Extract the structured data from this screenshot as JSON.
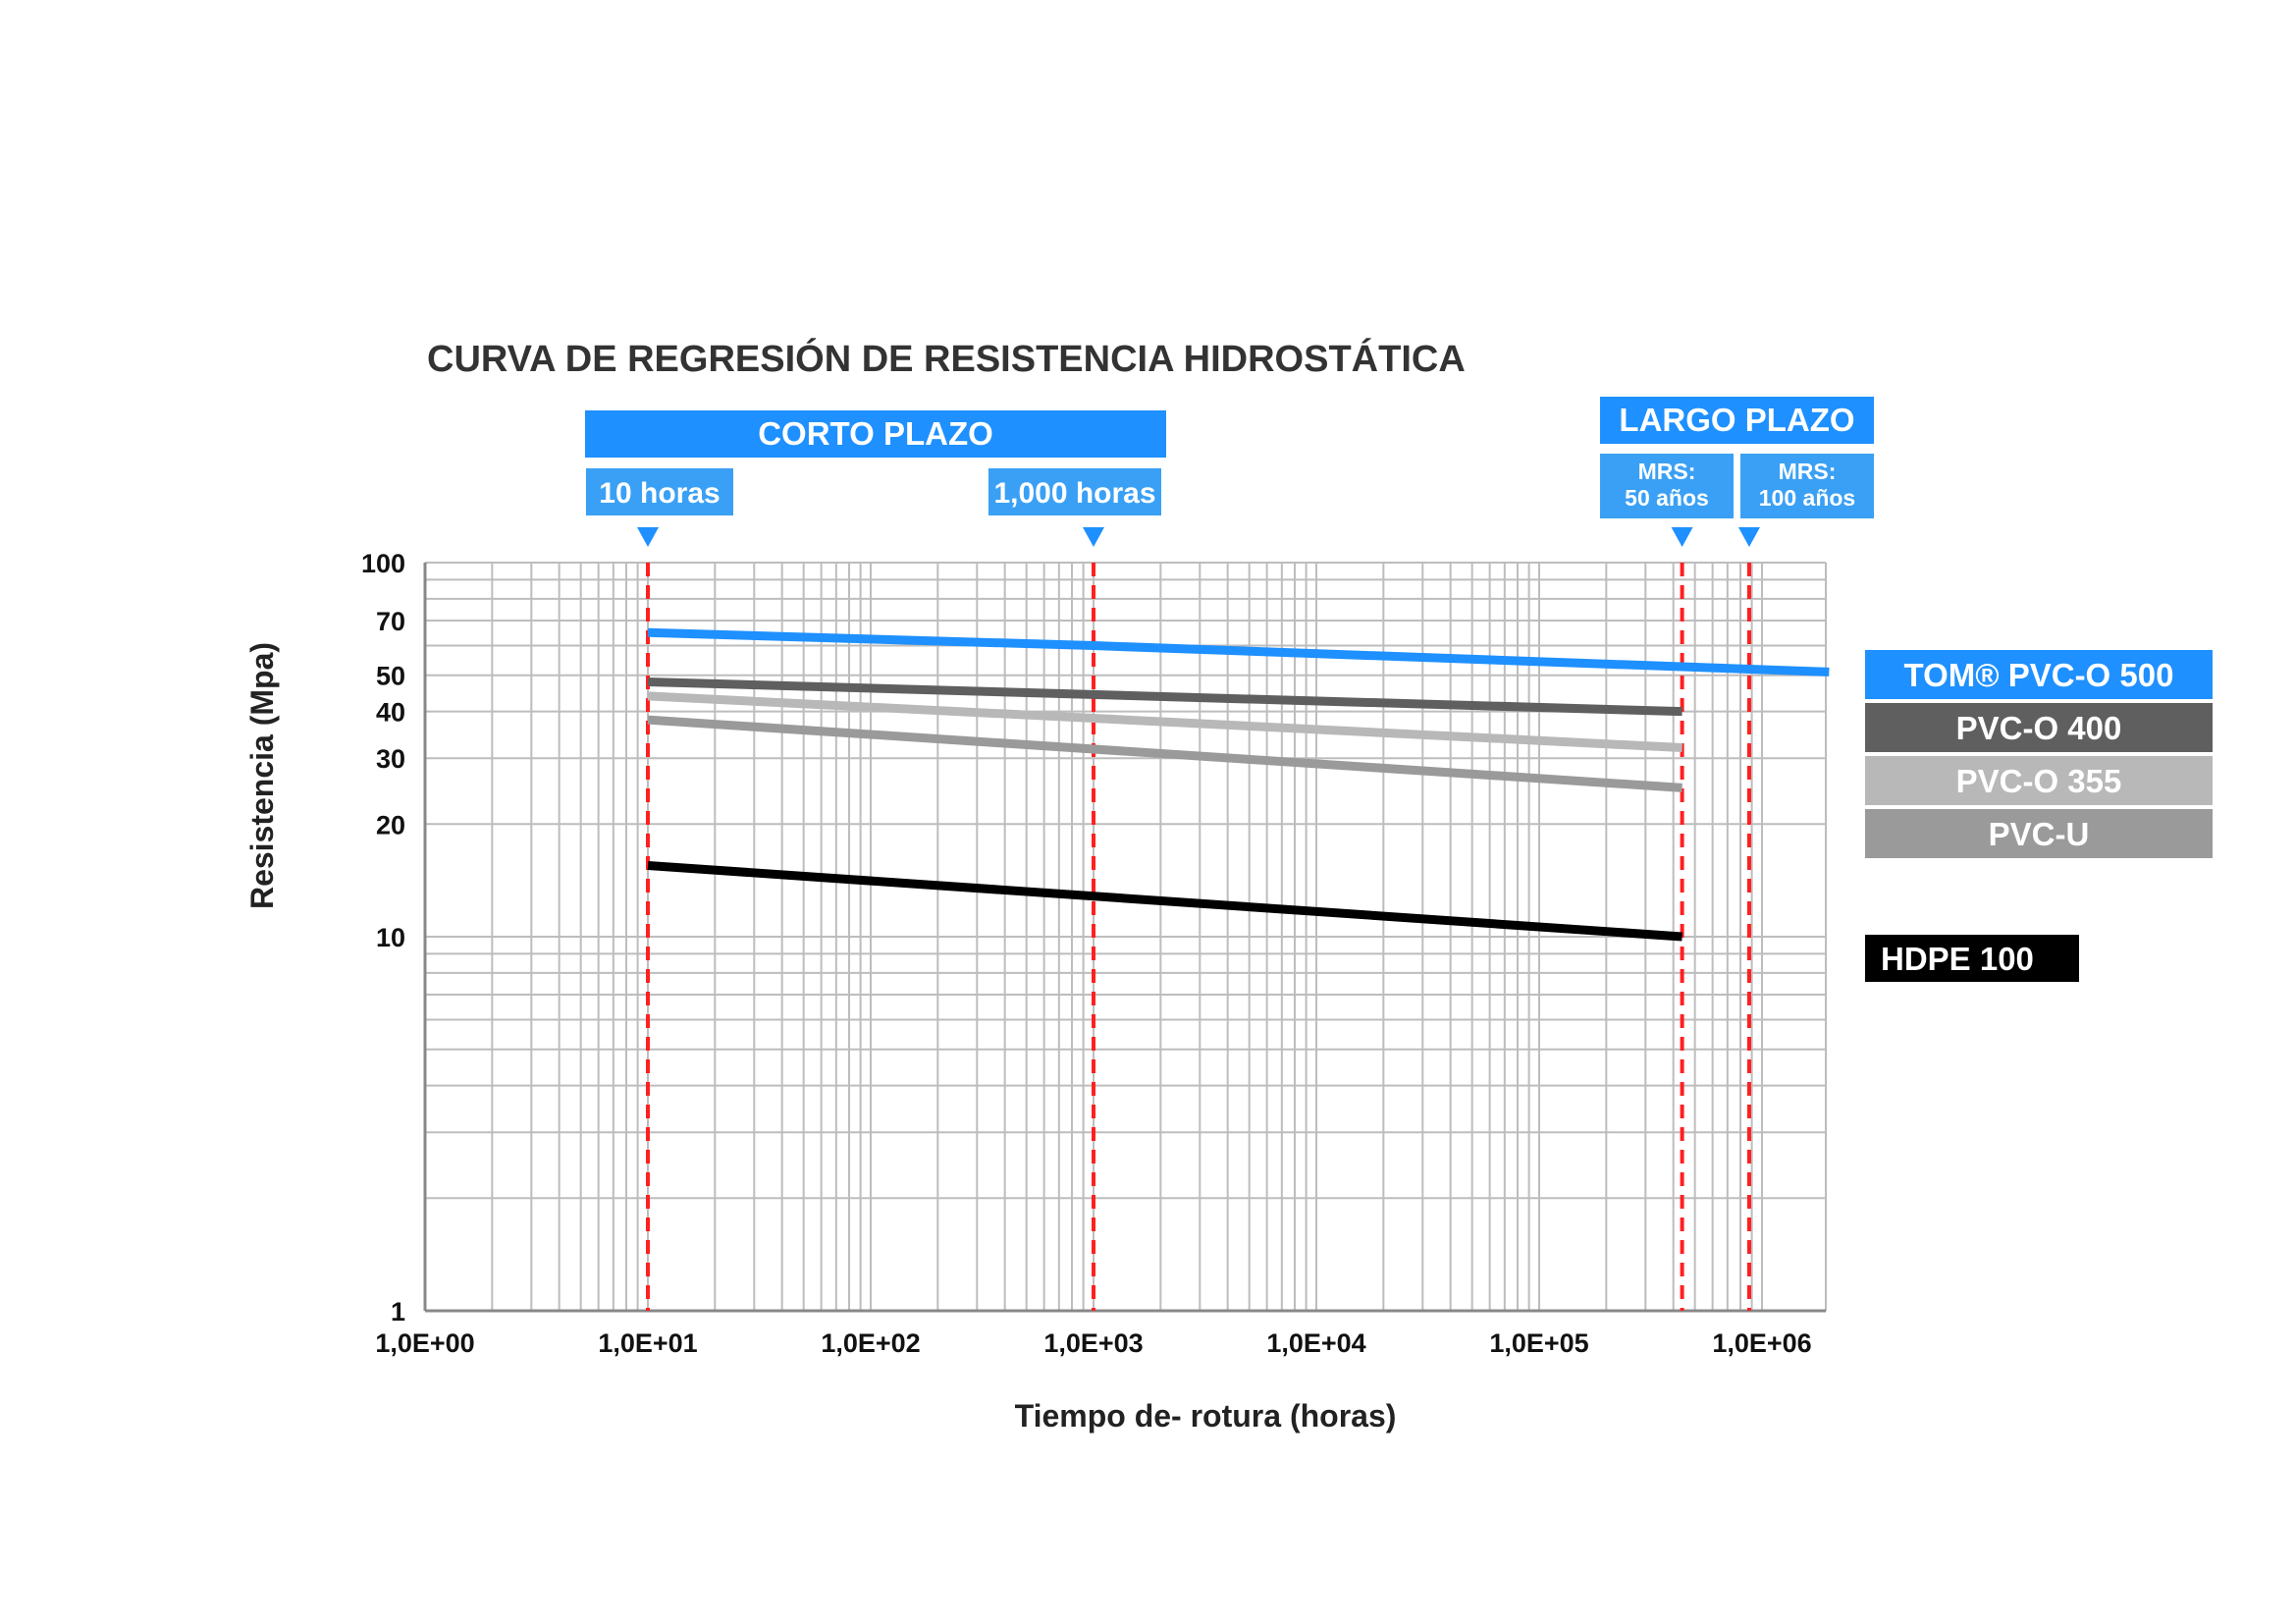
{
  "colors": {
    "blue": "#1e90ff",
    "blue_light": "#3aa0f5",
    "marker_red": "#ff2020",
    "grid": "#bdbdbd",
    "axis": "#888888"
  },
  "chart_data": {
    "type": "line",
    "title": "CURVA DE REGRESIÓN DE RESISTENCIA HIDROSTÁTICA",
    "xlabel": "Tiempo de- rotura (horas)",
    "ylabel": "Resistencia (Mpa)",
    "x_scale": "log",
    "y_scale": "log",
    "xlim": [
      1,
      2000000
    ],
    "ylim": [
      1,
      100
    ],
    "grid": true,
    "x_ticks": [
      {
        "value": 1,
        "label": "1,0E+00"
      },
      {
        "value": 10,
        "label": "1,0E+01"
      },
      {
        "value": 100,
        "label": "1,0E+02"
      },
      {
        "value": 1000,
        "label": "1,0E+03"
      },
      {
        "value": 10000,
        "label": "1,0E+04"
      },
      {
        "value": 100000,
        "label": "1,0E+05"
      },
      {
        "value": 1000000,
        "label": "1,0E+06"
      }
    ],
    "y_ticks": [
      {
        "value": 1,
        "label": "1"
      },
      {
        "value": 10,
        "label": "10"
      },
      {
        "value": 20,
        "label": "20"
      },
      {
        "value": 30,
        "label": "30"
      },
      {
        "value": 40,
        "label": "40"
      },
      {
        "value": 50,
        "label": "50"
      },
      {
        "value": 70,
        "label": "70"
      },
      {
        "value": 100,
        "label": "100"
      }
    ],
    "series": [
      {
        "name": "TOM® PVC-O 500",
        "color": "#1e90ff",
        "label_text": "#ffffff",
        "x": [
          10,
          1000,
          2000000
        ],
        "y": [
          65,
          60,
          51
        ]
      },
      {
        "name": "PVC-O 400",
        "color": "#5f5f5f",
        "label_text": "#ffffff",
        "x": [
          10,
          438000
        ],
        "y": [
          48,
          40
        ]
      },
      {
        "name": "PVC-O 355",
        "color": "#b8b8b8",
        "label_text": "#ffffff",
        "x": [
          10,
          438000
        ],
        "y": [
          44,
          32
        ]
      },
      {
        "name": "PVC-U",
        "color": "#9a9a9a",
        "label_text": "#ffffff",
        "x": [
          10,
          438000
        ],
        "y": [
          38,
          25
        ]
      },
      {
        "name": "HDPE 100",
        "color": "#000000",
        "label_text": "#ffffff",
        "x": [
          10,
          438000
        ],
        "y": [
          15.5,
          10
        ]
      }
    ],
    "markers": [
      {
        "x": 10,
        "label": "10 horas",
        "group": "CORTO PLAZO"
      },
      {
        "x": 1000,
        "label": "1,000 horas",
        "group": "CORTO PLAZO"
      },
      {
        "x": 438000,
        "label": [
          "MRS:",
          "50 años"
        ],
        "group": "LARGO PLAZO"
      },
      {
        "x": 876000,
        "label": [
          "MRS:",
          "100 años"
        ],
        "group": "LARGO PLAZO"
      }
    ],
    "period_headers": [
      "CORTO PLAZO",
      "LARGO PLAZO"
    ]
  }
}
